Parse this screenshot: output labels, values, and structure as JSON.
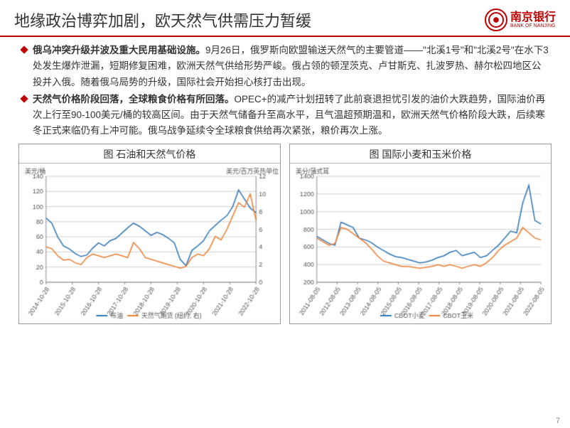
{
  "header": {
    "title": "地缘政治博弈加剧，欧天然气供需压力暂缓",
    "logo_cn": "南京银行",
    "logo_en": "BANK OF NANJING"
  },
  "bullets": [
    {
      "bold": "俄乌冲突升级并波及重大民用基础设施。",
      "rest": "9月26日，俄罗斯向欧盟输送天然气的主要管道——\"北溪1号\"和\"北溪2号\"在水下3处发生爆炸泄漏，短期修复困难，欧洲天然气供给形势严峻。俄占领的顿涅茨克、卢甘斯克、扎波罗热、赫尔松四地区公投并入俄。随着俄乌局势的升级，国际社会开始担心核打击出现。"
    },
    {
      "bold": "天然气价格阶段回落，全球粮食价格有所回落。",
      "rest": "OPEC+的减产计划扭转了此前衰退担忧引发的油价大跌趋势，国际油价再次上行至90-100美元/桶的较高区间。由于天然气储备升至高水平，且气温超预期温和，欧洲天然气价格阶段大跌，后续寒冬正式来临仍有上冲可能。俄乌战争延续令全球粮食供给再次紧张，粮价再次上涨。"
    }
  ],
  "chart1": {
    "title": "图 石油和天然气价格",
    "type": "line",
    "y1_label": "美元/桶",
    "y2_label": "美元/百万英热单位",
    "y1_lim": [
      0,
      140
    ],
    "y1_step": 20,
    "y2_lim": [
      0,
      12
    ],
    "y2_step": 2,
    "x_labels": [
      "2014-10-28",
      "2015-10-28",
      "2016-10-28",
      "2017-10-28",
      "2018-10-28",
      "2019-10-28",
      "2020-10-28",
      "2021-10-28",
      "2022-10-28"
    ],
    "series": [
      {
        "name": "布油",
        "color": "#2e75b6",
        "axis": "left",
        "data": [
          85,
          78,
          60,
          48,
          44,
          38,
          34,
          36,
          45,
          52,
          48,
          55,
          58,
          65,
          72,
          78,
          74,
          68,
          62,
          66,
          63,
          58,
          52,
          30,
          22,
          42,
          48,
          55,
          68,
          75,
          82,
          88,
          100,
          122,
          110,
          98,
          92
        ]
      },
      {
        "name": "天然气期货 (纽约, 右)",
        "color": "#ed7d31",
        "axis": "right",
        "data": [
          4.0,
          3.8,
          3.0,
          2.5,
          2.6,
          2.2,
          2.0,
          2.8,
          3.2,
          3.0,
          2.8,
          3.0,
          3.2,
          3.0,
          2.8,
          4.5,
          3.8,
          2.8,
          2.6,
          2.4,
          2.2,
          2.0,
          1.8,
          1.6,
          1.8,
          2.8,
          3.2,
          3.0,
          3.8,
          5.2,
          4.8,
          6.0,
          7.5,
          9.0,
          8.5,
          10.0,
          7.0
        ]
      }
    ],
    "legend": [
      "布油",
      "天然气期货 (纽约, 右)"
    ],
    "legend_colors": [
      "#2e75b6",
      "#ed7d31"
    ],
    "grid_color": "#d0d0d0",
    "axis_color": "#888888",
    "label_fontsize": 9,
    "title_fontsize": 14,
    "background_color": "#ffffff"
  },
  "chart2": {
    "title": "图 国际小麦和玉米价格",
    "type": "line",
    "y1_label": "美分/蒲式耳",
    "y1_lim": [
      200,
      1400
    ],
    "y1_step": 200,
    "x_labels": [
      "2011-08-05",
      "2012-08-05",
      "2013-08-05",
      "2014-08-05",
      "2015-08-05",
      "2016-08-05",
      "2017-08-05",
      "2018-08-05",
      "2019-08-05",
      "2020-08-05",
      "2021-08-05",
      "2022-08-05"
    ],
    "series": [
      {
        "name": "CBOT小麦",
        "color": "#2e75b6",
        "axis": "left",
        "data": [
          720,
          680,
          640,
          620,
          880,
          850,
          820,
          700,
          680,
          650,
          600,
          560,
          520,
          490,
          480,
          460,
          440,
          420,
          430,
          450,
          480,
          500,
          540,
          560,
          500,
          520,
          540,
          480,
          500,
          560,
          620,
          700,
          780,
          760,
          1100,
          1300,
          900,
          860
        ]
      },
      {
        "name": "CBOT玉米",
        "color": "#ed7d31",
        "axis": "left",
        "data": [
          700,
          660,
          620,
          640,
          820,
          800,
          750,
          700,
          650,
          580,
          500,
          440,
          420,
          400,
          380,
          380,
          370,
          360,
          370,
          380,
          400,
          380,
          400,
          380,
          360,
          380,
          400,
          380,
          420,
          480,
          560,
          620,
          660,
          700,
          820,
          760,
          700,
          680
        ]
      }
    ],
    "legend": [
      "CBOT小麦",
      "CBOT玉米"
    ],
    "legend_colors": [
      "#2e75b6",
      "#ed7d31"
    ],
    "grid_color": "#d0d0d0",
    "axis_color": "#888888",
    "label_fontsize": 9,
    "title_fontsize": 14,
    "background_color": "#ffffff"
  },
  "page_number": "7"
}
